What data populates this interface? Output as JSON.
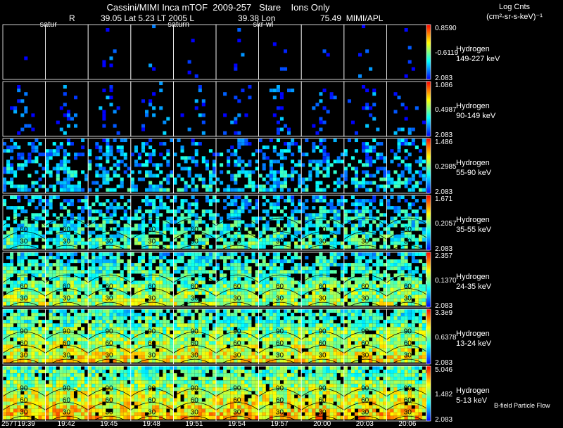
{
  "header": {
    "title": "Cassini/MIMI Inca mTOF  2009-257   Stare    Ions Only",
    "r_label": "R",
    "r_value": "39.05 Lat 5.23 LT 2005 L",
    "lon_value": "39.38 Lon",
    "apl_value": "75.49  MIMI/APL",
    "units_line1": "Log Cnts",
    "units_line2": "(cm²-sr-s-keV)⁻¹",
    "column_labels": [
      {
        "text": "satur",
        "col": 1
      },
      {
        "text": "saturn",
        "col": 4
      },
      {
        "text": "skr-wl",
        "col": 6
      }
    ],
    "footer_note": "B-field Particle Flow"
  },
  "chart_data": {
    "type": "heatmap",
    "title": "Cassini/MIMI Inca mTOF  2009-257   Stare    Ions Only",
    "time_labels": [
      "257T19:39",
      "19:42",
      "19:45",
      "19:48",
      "19:51",
      "19:54",
      "19:57",
      "20:00",
      "20:03",
      "20:06"
    ],
    "contour_labels": [
      "30",
      "60",
      "90"
    ],
    "colorscale": [
      "#0000ff",
      "#0080ff",
      "#00ffff",
      "#80ff80",
      "#ffff00",
      "#ff8000",
      "#ff0000"
    ],
    "bands": [
      {
        "species": "Hydrogen",
        "energy": "149-227 keV",
        "cmax": "0.8590",
        "cmid": "-0.6119",
        "cmin": "2.083",
        "level": 0.05
      },
      {
        "species": "Hydrogen",
        "energy": "90-149 keV",
        "cmax": "1.086",
        "cmid": "0.4987",
        "cmin": "2.083",
        "level": 0.12
      },
      {
        "species": "Hydrogen",
        "energy": "55-90 keV",
        "cmax": "1.486",
        "cmid": "0.2985",
        "cmin": "2.083",
        "level": 0.3
      },
      {
        "species": "Hydrogen",
        "energy": "35-55 keV",
        "cmax": "1.671",
        "cmid": "0.2057",
        "cmin": "2.083",
        "level": 0.42
      },
      {
        "species": "Hydrogen",
        "energy": "24-35 keV",
        "cmax": "2.357",
        "cmid": "0.1370",
        "cmin": "2.083",
        "level": 0.55
      },
      {
        "species": "Hydrogen",
        "energy": "13-24 keV",
        "cmax": "3.3e9",
        "cmid": "0.6378",
        "cmin": "2.083",
        "level": 0.65
      },
      {
        "species": "Hydrogen",
        "energy": "5-13 keV",
        "cmax": "5.046",
        "cmid": "1.482",
        "cmin": "2.083",
        "level": 0.72
      }
    ]
  }
}
